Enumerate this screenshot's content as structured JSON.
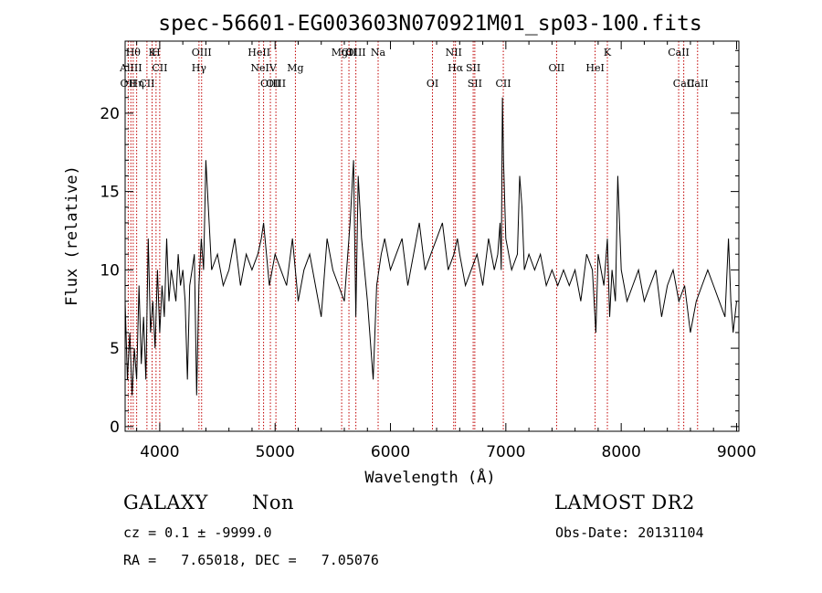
{
  "chart_data": {
    "type": "line",
    "title": "spec-56601-EG003603N070921M01_sp03-100.fits",
    "xlabel": "Wavelength (Å)",
    "ylabel": "Flux (relative)",
    "xlim": [
      3700,
      9020
    ],
    "ylim": [
      -0.3,
      24.6
    ],
    "xticks": [
      4000,
      5000,
      6000,
      7000,
      8000,
      9000
    ],
    "yticks": [
      0,
      5,
      10,
      15,
      20
    ],
    "grid": false,
    "series": [
      {
        "x": [
          3700,
          3720,
          3740,
          3760,
          3780,
          3800,
          3820,
          3840,
          3860,
          3880,
          3900,
          3920,
          3940,
          3960,
          3980,
          4000,
          4020,
          4040,
          4060,
          4080,
          4100,
          4120,
          4140,
          4160,
          4180,
          4200,
          4220,
          4240,
          4260,
          4280,
          4300,
          4320,
          4340,
          4360,
          4380,
          4400,
          4450,
          4500,
          4550,
          4600,
          4650,
          4700,
          4750,
          4800,
          4850,
          4880,
          4900,
          4950,
          5000,
          5050,
          5100,
          5150,
          5200,
          5250,
          5300,
          5350,
          5400,
          5450,
          5500,
          5550,
          5600,
          5650,
          5680,
          5700,
          5720,
          5750,
          5800,
          5850,
          5880,
          5900,
          5920,
          5950,
          6000,
          6050,
          6100,
          6150,
          6200,
          6250,
          6300,
          6350,
          6400,
          6450,
          6500,
          6550,
          6580,
          6600,
          6650,
          6700,
          6750,
          6800,
          6850,
          6900,
          6930,
          6950,
          6960,
          6970,
          6980,
          7000,
          7050,
          7100,
          7120,
          7140,
          7160,
          7200,
          7250,
          7300,
          7350,
          7400,
          7450,
          7500,
          7550,
          7600,
          7650,
          7700,
          7750,
          7780,
          7800,
          7850,
          7880,
          7900,
          7920,
          7950,
          7970,
          8000,
          8050,
          8100,
          8150,
          8200,
          8250,
          8300,
          8350,
          8400,
          8450,
          8500,
          8550,
          8600,
          8650,
          8700,
          8750,
          8800,
          8850,
          8900,
          8930,
          8950,
          8970,
          9000
        ],
        "values": [
          8,
          3,
          6,
          2,
          5,
          3,
          9,
          4,
          7,
          3,
          12,
          6,
          8,
          5,
          10,
          6,
          9,
          7,
          12,
          8,
          10,
          9,
          8,
          11,
          9,
          10,
          8,
          3,
          9,
          10,
          11,
          2,
          9,
          12,
          10,
          17,
          10,
          11,
          9,
          10,
          12,
          9,
          11,
          10,
          11,
          12,
          13,
          9,
          11,
          10,
          9,
          12,
          8,
          10,
          11,
          9,
          7,
          12,
          10,
          9,
          8,
          13,
          17,
          7,
          16,
          12,
          8,
          3,
          9,
          10,
          11,
          12,
          10,
          11,
          12,
          9,
          11,
          13,
          10,
          11,
          12,
          13,
          10,
          11,
          12,
          11,
          9,
          10,
          11,
          9,
          12,
          10,
          11,
          13,
          10,
          21,
          17,
          12,
          10,
          11,
          16,
          14,
          10,
          11,
          10,
          11,
          9,
          10,
          9,
          10,
          9,
          10,
          8,
          11,
          10,
          6,
          11,
          9,
          12,
          7,
          10,
          8,
          16,
          10,
          8,
          9,
          10,
          8,
          9,
          10,
          7,
          9,
          10,
          8,
          9,
          6,
          8,
          9,
          10,
          9,
          8,
          7,
          12,
          8,
          6,
          8
        ]
      }
    ],
    "lines": [
      {
        "wl": 3727,
        "label": "OII",
        "row": 3
      },
      {
        "wl": 3750,
        "label": "AlIII",
        "row": 2
      },
      {
        "wl": 3770,
        "label": "Hθ",
        "row": 1
      },
      {
        "wl": 3800,
        "label": "Hη",
        "row": 3
      },
      {
        "wl": 3889,
        "label": "CII",
        "row": 3
      },
      {
        "wl": 3934,
        "label": "K",
        "row": 0
      },
      {
        "wl": 3968,
        "label": "H",
        "row": 0
      },
      {
        "wl": 4000,
        "label": "CII",
        "row": 2
      },
      {
        "wl": 4340,
        "label": "Hγ",
        "row": 2
      },
      {
        "wl": 4363,
        "label": "OIII",
        "row": 1
      },
      {
        "wl": 4861,
        "label": "HeII",
        "row": 1
      },
      {
        "wl": 4900,
        "label": "NeIV",
        "row": 2
      },
      {
        "wl": 4959,
        "label": "OIII",
        "row": 3
      },
      {
        "wl": 5007,
        "label": "OIII",
        "row": 3
      },
      {
        "wl": 5176,
        "label": "Mg",
        "row": 2
      },
      {
        "wl": 5577,
        "label": "MgI",
        "row": 1
      },
      {
        "wl": 5640,
        "label": "CII",
        "row": 1
      },
      {
        "wl": 5700,
        "label": "OIII",
        "row": 1
      },
      {
        "wl": 5893,
        "label": "Na",
        "row": 1
      },
      {
        "wl": 6364,
        "label": "OI",
        "row": 3
      },
      {
        "wl": 6548,
        "label": "NII",
        "row": 1
      },
      {
        "wl": 6563,
        "label": "Hα",
        "row": 2
      },
      {
        "wl": 6717,
        "label": "SII",
        "row": 2
      },
      {
        "wl": 6731,
        "label": "SII",
        "row": 3
      },
      {
        "wl": 6978,
        "label": "CII",
        "row": 3
      },
      {
        "wl": 7440,
        "label": "OII",
        "row": 2
      },
      {
        "wl": 7774,
        "label": "HeI",
        "row": 2
      },
      {
        "wl": 7880,
        "label": "K",
        "row": 1
      },
      {
        "wl": 8498,
        "label": "CaII",
        "row": 1
      },
      {
        "wl": 8542,
        "label": "CaII",
        "row": 3
      },
      {
        "wl": 8662,
        "label": "CaII",
        "row": 3
      }
    ]
  },
  "info": {
    "class_label": "GALAXY",
    "subclass_label": "Non",
    "survey_label": "LAMOST DR2",
    "cz_text": "cz = 0.1 ± -9999.0",
    "obs_date_text": "Obs-Date: 20131104",
    "radec_text": "RA =   7.65018, DEC =   7.05076"
  },
  "colors": {
    "line_marker": "#c00000",
    "spectrum": "#000000",
    "axes": "#000000"
  }
}
